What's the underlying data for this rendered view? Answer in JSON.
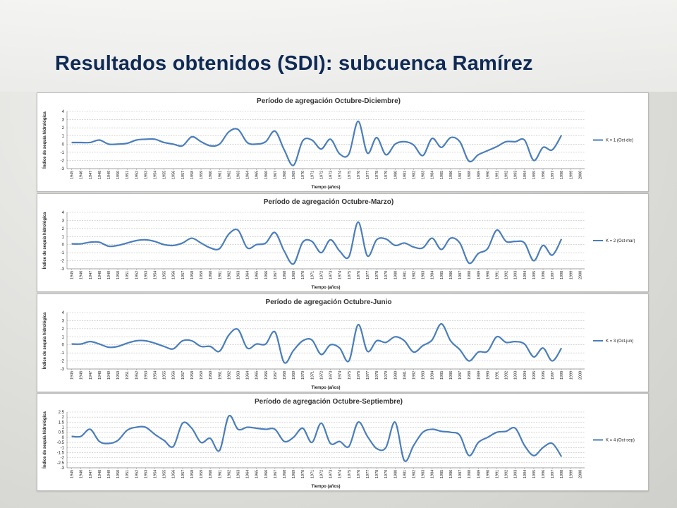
{
  "slide": {
    "title": "Resultados obtenidos (SDI): subcuenca Ramírez"
  },
  "years": [
    "1945",
    "1946",
    "1947",
    "1948",
    "1949",
    "1950",
    "1951",
    "1952",
    "1953",
    "1954",
    "1955",
    "1956",
    "1957",
    "1958",
    "1959",
    "1960",
    "1961",
    "1962",
    "1963",
    "1964",
    "1965",
    "1966",
    "1967",
    "1968",
    "1969",
    "1970",
    "1971",
    "1972",
    "1973",
    "1974",
    "1975",
    "1976",
    "1977",
    "1978",
    "1979",
    "1980",
    "1981",
    "1982",
    "1983",
    "1984",
    "1985",
    "1986",
    "1987",
    "1988",
    "1989",
    "1990",
    "1991",
    "1992",
    "1993",
    "1994",
    "1995",
    "1996",
    "1997",
    "1998",
    "1999",
    "2000"
  ],
  "chart_data": [
    {
      "type": "line",
      "title": "Período de agregación Octubre-Diciembre)",
      "xlabel": "Tiempo (años)",
      "ylabel": "Índice de sequía hidrológica",
      "ylim": [
        -3,
        4
      ],
      "yticks": [
        4,
        3,
        2,
        1,
        0,
        -1,
        -2,
        -3
      ],
      "color": "#4a7ebb",
      "grid": true,
      "legend": "right",
      "series": [
        {
          "name": "K = 1 (Oct-dic)",
          "x": [
            "1945",
            "1946",
            "1947",
            "1948",
            "1949",
            "1950",
            "1951",
            "1952",
            "1953",
            "1954",
            "1955",
            "1956",
            "1957",
            "1958",
            "1959",
            "1960",
            "1961",
            "1962",
            "1963",
            "1964",
            "1965",
            "1966",
            "1967",
            "1968",
            "1969",
            "1970",
            "1971",
            "1972",
            "1973",
            "1974",
            "1975",
            "1976",
            "1977",
            "1978",
            "1979",
            "1980",
            "1981",
            "1982",
            "1983",
            "1984",
            "1985",
            "1986",
            "1987",
            "1988",
            "1989",
            "1990",
            "1991",
            "1992",
            "1993",
            "1994",
            "1995",
            "1996",
            "1997",
            "1998"
          ],
          "values": [
            0.2,
            0.2,
            0.2,
            0.5,
            0,
            0,
            0.1,
            0.5,
            0.6,
            0.6,
            0.2,
            0,
            -0.2,
            0.9,
            0.3,
            -0.2,
            0,
            1.5,
            1.8,
            0.2,
            0,
            0.3,
            1.6,
            -0.7,
            -2.6,
            0.4,
            0.5,
            -0.6,
            0.6,
            -1.2,
            -1.2,
            2.8,
            -1.1,
            0.8,
            -1.3,
            0,
            0.3,
            -0.1,
            -1.4,
            0.7,
            -0.4,
            0.8,
            0.3,
            -2.1,
            -1.3,
            -0.8,
            -0.3,
            0.3,
            0.3,
            0.5,
            -2,
            -0.4,
            -0.7,
            1.1
          ]
        }
      ]
    },
    {
      "type": "line",
      "title": "Período de agregación Octubre-Marzo)",
      "xlabel": "Tiempo (años)",
      "ylabel": "Índice de sequía hidrológica",
      "ylim": [
        -3,
        4
      ],
      "yticks": [
        4,
        3,
        2,
        1,
        0,
        -1,
        -2,
        -3
      ],
      "color": "#4a7ebb",
      "grid": true,
      "legend": "right",
      "series": [
        {
          "name": "K = 2 (Oct-mar)",
          "x": [
            "1945",
            "1946",
            "1947",
            "1948",
            "1949",
            "1950",
            "1951",
            "1952",
            "1953",
            "1954",
            "1955",
            "1956",
            "1957",
            "1958",
            "1959",
            "1960",
            "1961",
            "1962",
            "1963",
            "1964",
            "1965",
            "1966",
            "1967",
            "1968",
            "1969",
            "1970",
            "1971",
            "1972",
            "1973",
            "1974",
            "1975",
            "1976",
            "1977",
            "1978",
            "1979",
            "1980",
            "1981",
            "1982",
            "1983",
            "1984",
            "1985",
            "1986",
            "1987",
            "1988",
            "1989",
            "1990",
            "1991",
            "1992",
            "1993",
            "1994",
            "1995",
            "1996",
            "1997",
            "1998"
          ],
          "values": [
            0.1,
            0.1,
            0.3,
            0.3,
            -0.2,
            -0.1,
            0.2,
            0.5,
            0.6,
            0.4,
            0,
            -0.1,
            0.2,
            0.8,
            0.2,
            -0.4,
            -0.5,
            1.3,
            1.8,
            -0.4,
            0,
            0.2,
            1.5,
            -0.8,
            -2.4,
            0.3,
            0.4,
            -1,
            0.6,
            -0.8,
            -1.5,
            2.8,
            -1.4,
            0.6,
            0.7,
            -0.1,
            0.2,
            -0.3,
            -0.4,
            0.8,
            -0.6,
            0.8,
            0.2,
            -2.3,
            -1.1,
            -0.5,
            1.8,
            0.4,
            0.4,
            0.2,
            -2,
            -0.1,
            -1.3,
            0.7
          ]
        }
      ]
    },
    {
      "type": "line",
      "title": "Período de agregación Octubre-Junio",
      "xlabel": "Tiempo (años)",
      "ylabel": "Índice de sequía hidrológica",
      "ylim": [
        -3,
        4
      ],
      "yticks": [
        4,
        3,
        2,
        1,
        0,
        -1,
        -2,
        -3
      ],
      "color": "#4a7ebb",
      "grid": true,
      "legend": "right",
      "series": [
        {
          "name": "K = 3 (Oct-jun)",
          "x": [
            "1945",
            "1946",
            "1947",
            "1948",
            "1949",
            "1950",
            "1951",
            "1952",
            "1953",
            "1954",
            "1955",
            "1956",
            "1957",
            "1958",
            "1959",
            "1960",
            "1961",
            "1962",
            "1963",
            "1964",
            "1965",
            "1966",
            "1967",
            "1968",
            "1969",
            "1970",
            "1971",
            "1972",
            "1973",
            "1974",
            "1975",
            "1976",
            "1977",
            "1978",
            "1979",
            "1980",
            "1981",
            "1982",
            "1983",
            "1984",
            "1985",
            "1986",
            "1987",
            "1988",
            "1989",
            "1990",
            "1991",
            "1992",
            "1993",
            "1994",
            "1995",
            "1996",
            "1997",
            "1998"
          ],
          "values": [
            0.1,
            0.1,
            0.4,
            0.1,
            -0.3,
            -0.2,
            0.2,
            0.5,
            0.5,
            0.2,
            -0.2,
            -0.5,
            0.5,
            0.5,
            -0.2,
            -0.2,
            -0.8,
            1.2,
            1.9,
            -0.4,
            0.1,
            0.1,
            1.6,
            -2.2,
            -0.7,
            0.5,
            0.6,
            -1.2,
            0,
            -0.4,
            -2,
            2.5,
            -0.8,
            0.5,
            0.3,
            1,
            0.5,
            -0.9,
            -0.1,
            0.6,
            2.6,
            0.5,
            -0.6,
            -2,
            -0.9,
            -0.8,
            1,
            0.3,
            0.4,
            0.1,
            -1.5,
            -0.4,
            -2,
            -0.4
          ]
        }
      ]
    },
    {
      "type": "line",
      "title": "Período de agregación Octubre-Septiembre)",
      "xlabel": "Tiempo (años)",
      "ylabel": "Índice de sequía hidrológica",
      "ylim": [
        -3,
        2.5
      ],
      "yticks": [
        2.5,
        2,
        1.5,
        1,
        0.5,
        0,
        -0.5,
        -1,
        -1.5,
        -2,
        -2.5,
        -3
      ],
      "color": "#4a7ebb",
      "grid": true,
      "legend": "right",
      "series": [
        {
          "name": "K = 4 (Oct-sep)",
          "x": [
            "1945",
            "1946",
            "1947",
            "1948",
            "1949",
            "1950",
            "1951",
            "1952",
            "1953",
            "1954",
            "1955",
            "1956",
            "1957",
            "1958",
            "1959",
            "1960",
            "1961",
            "1962",
            "1963",
            "1964",
            "1965",
            "1966",
            "1967",
            "1968",
            "1969",
            "1970",
            "1971",
            "1972",
            "1973",
            "1974",
            "1975",
            "1976",
            "1977",
            "1978",
            "1979",
            "1980",
            "1981",
            "1982",
            "1983",
            "1984",
            "1985",
            "1986",
            "1987",
            "1988",
            "1989",
            "1990",
            "1991",
            "1992",
            "1993",
            "1994",
            "1995",
            "1996",
            "1997",
            "1998"
          ],
          "values": [
            0.1,
            0.1,
            0.8,
            -0.4,
            -0.6,
            -0.3,
            0.7,
            1,
            1,
            0.3,
            -0.3,
            -0.9,
            1.4,
            0.9,
            -0.5,
            -0.1,
            -1.3,
            2.1,
            0.8,
            1,
            0.9,
            0.8,
            0.8,
            -0.4,
            0,
            0.9,
            -0.5,
            1.4,
            -0.6,
            -0.4,
            -0.9,
            1.5,
            0.1,
            -1.1,
            -1,
            1.5,
            -2.3,
            -0.8,
            0.5,
            0.8,
            0.6,
            0.5,
            0.2,
            -1.8,
            -0.5,
            0,
            0.5,
            0.6,
            0.9,
            -0.8,
            -1.8,
            -1,
            -0.6,
            -1.9
          ]
        }
      ]
    }
  ]
}
